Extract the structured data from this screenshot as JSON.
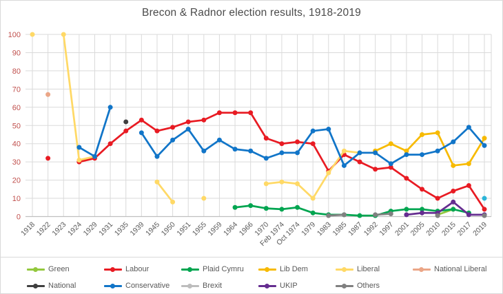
{
  "chart_data": {
    "type": "line",
    "title": "Brecon & Radnor election results, 1918-2019",
    "xlabel": "",
    "ylabel": "",
    "ylim": [
      0,
      100
    ],
    "ytick_step": 10,
    "grid": true,
    "legend_position": "bottom",
    "axis_colors": {
      "y_labels": "#C0504D",
      "x_labels": "#595959"
    },
    "categories": [
      "1918",
      "1922",
      "1923",
      "1924",
      "1929",
      "1931",
      "1935",
      "1939",
      "1945",
      "1950",
      "1951",
      "1955",
      "1959",
      "1964",
      "1966",
      "1970",
      "Feb 1974",
      "Oct 1974",
      "1979",
      "1983",
      "1985",
      "1987",
      "1992",
      "1997",
      "2001",
      "2005",
      "2010",
      "2015",
      "2017",
      "2019"
    ],
    "series": [
      {
        "name": "Green",
        "color": "#93C83D",
        "values": [
          null,
          null,
          null,
          null,
          null,
          null,
          null,
          null,
          null,
          null,
          null,
          null,
          null,
          null,
          null,
          null,
          null,
          null,
          null,
          null,
          null,
          null,
          null,
          null,
          null,
          null,
          1,
          4,
          null,
          null
        ]
      },
      {
        "name": "Labour",
        "color": "#E81B23",
        "values": [
          null,
          32,
          null,
          30,
          32,
          40,
          47,
          53,
          47,
          49,
          52,
          53,
          57,
          57,
          57,
          43,
          40,
          41,
          40,
          25,
          34,
          30,
          26,
          27,
          21,
          15,
          10,
          14,
          17,
          4
        ]
      },
      {
        "name": "Plaid Cymru",
        "color": "#00A550",
        "values": [
          null,
          null,
          null,
          null,
          null,
          null,
          null,
          null,
          null,
          null,
          null,
          null,
          null,
          5,
          6,
          4.5,
          4,
          5,
          2,
          1,
          1,
          0.5,
          0.5,
          3,
          4,
          4,
          3,
          4,
          2,
          null
        ]
      },
      {
        "name": "Lib Dem",
        "color": "#F7BA00",
        "values": [
          null,
          null,
          null,
          null,
          null,
          null,
          null,
          null,
          null,
          null,
          null,
          null,
          null,
          null,
          null,
          null,
          null,
          null,
          null,
          null,
          null,
          null,
          36,
          40,
          36,
          45,
          46,
          28,
          29,
          43
        ]
      },
      {
        "name": "Liberal",
        "color": "#FFD966",
        "values": [
          100,
          null,
          100,
          31,
          33,
          null,
          null,
          null,
          19,
          8,
          null,
          10,
          null,
          null,
          null,
          18,
          19,
          18,
          10,
          24,
          36,
          35,
          null,
          null,
          null,
          null,
          null,
          null,
          null,
          null
        ]
      },
      {
        "name": "National Liberal",
        "color": "#EBA687",
        "values": [
          null,
          67,
          null,
          null,
          null,
          null,
          null,
          null,
          null,
          null,
          null,
          null,
          null,
          null,
          null,
          null,
          null,
          null,
          null,
          null,
          null,
          null,
          null,
          null,
          null,
          null,
          null,
          null,
          null,
          null
        ]
      },
      {
        "name": "National",
        "color": "#3F3F3F",
        "values": [
          null,
          null,
          null,
          null,
          null,
          null,
          52,
          null,
          null,
          null,
          null,
          null,
          null,
          null,
          null,
          null,
          null,
          null,
          null,
          null,
          null,
          null,
          null,
          null,
          null,
          null,
          null,
          null,
          null,
          null
        ]
      },
      {
        "name": "Conservative",
        "color": "#1175C8",
        "values": [
          null,
          null,
          null,
          38,
          33,
          60,
          null,
          46,
          33,
          42,
          48,
          36,
          42,
          37,
          36,
          32,
          35,
          35,
          47,
          48,
          28,
          35,
          35,
          29,
          34,
          34,
          36,
          41,
          49,
          39
        ]
      },
      {
        "name": "Brexit",
        "color": "#2CB5D8",
        "legend_color": "#BDBDBD",
        "values": [
          null,
          null,
          null,
          null,
          null,
          null,
          null,
          null,
          null,
          null,
          null,
          null,
          null,
          null,
          null,
          null,
          null,
          null,
          null,
          null,
          null,
          null,
          null,
          null,
          null,
          null,
          null,
          null,
          null,
          10
        ]
      },
      {
        "name": "UKIP",
        "color": "#652D90",
        "values": [
          null,
          null,
          null,
          null,
          null,
          null,
          null,
          null,
          null,
          null,
          null,
          null,
          null,
          null,
          null,
          null,
          null,
          null,
          null,
          null,
          null,
          null,
          null,
          null,
          1,
          2,
          2,
          8,
          1,
          1
        ]
      },
      {
        "name": "Others",
        "color": "#808080",
        "values": [
          null,
          null,
          null,
          null,
          null,
          null,
          null,
          null,
          null,
          null,
          null,
          null,
          null,
          null,
          null,
          null,
          null,
          null,
          null,
          0.5,
          1,
          null,
          1,
          1.5,
          null,
          null,
          0.5,
          null,
          null,
          0.5
        ]
      }
    ],
    "legend_rows": [
      [
        "Green",
        "Labour",
        "Plaid Cymru",
        "Lib Dem",
        "Liberal",
        "National Liberal"
      ],
      [
        "National",
        "Conservative",
        "Brexit",
        "UKIP",
        "Others"
      ]
    ]
  }
}
